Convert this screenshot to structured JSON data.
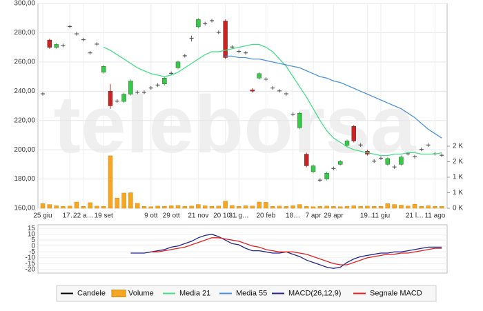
{
  "watermark": "teleborsa",
  "chart_data": [
    {
      "type": "candlestick",
      "categories": [
        "25 giu",
        null,
        null,
        null,
        "17…",
        null,
        "22 a…",
        null,
        null,
        "19 set",
        null,
        null,
        null,
        null,
        null,
        null,
        "9 ott",
        null,
        null,
        "29 ott",
        null,
        null,
        null,
        "21 nov",
        null,
        null,
        null,
        "20 10…",
        null,
        "31 g…",
        null,
        null,
        null,
        "20 feb",
        null,
        null,
        null,
        "18…",
        null,
        null,
        "7 apr",
        null,
        null,
        "29 apr",
        null,
        null,
        null,
        null,
        "19…",
        null,
        "11 giu",
        null,
        null,
        null,
        null,
        "21 l…",
        null,
        null,
        "11 ago",
        null
      ],
      "ylim": [
        160,
        300
      ],
      "yticks": [
        {
          "value": 160,
          "label": "160,00"
        },
        {
          "value": 180,
          "label": "180,00"
        },
        {
          "value": 200,
          "label": "200,00"
        },
        {
          "value": 220,
          "label": "220,00"
        },
        {
          "value": 240,
          "label": "240,00"
        },
        {
          "value": 260,
          "label": "260,00"
        },
        {
          "value": 280,
          "label": "280,00"
        },
        {
          "value": 300,
          "label": "300,00"
        }
      ],
      "y2lim": [
        0,
        6600
      ],
      "y2ticks": [
        {
          "value": 0,
          "label": "0 K"
        },
        {
          "value": 500,
          "label": "1 K"
        },
        {
          "value": 1000,
          "label": "1 K"
        },
        {
          "value": 1500,
          "label": "2 K"
        },
        {
          "value": 2000,
          "label": "2 K"
        }
      ],
      "grid": true,
      "candles": {
        "name": "Candele",
        "color": "#000000",
        "up_color": "#33cc44",
        "down_color": "#cc2222",
        "flat_color": "#555555",
        "open": [
          238.5,
          275,
          270,
          271.5,
          284.5,
          279.5,
          275.5,
          266.5,
          272.5,
          253,
          240,
          233.5,
          233,
          238,
          239.5,
          239.5,
          242.5,
          244.5,
          245,
          252.5,
          256,
          264.5,
          276.5,
          284,
          286.5,
          288.5,
          280.5,
          288,
          270.5,
          267.5,
          266.5,
          241,
          249,
          248.5,
          242.5,
          240.5,
          238.5,
          224.5,
          215,
          197,
          185,
          179.5,
          180,
          187.5,
          190,
          203,
          216,
          203.5,
          199,
          192.5,
          194.5,
          190,
          188.5,
          190,
          197.5,
          195.5,
          200.5,
          203.5,
          197.5,
          196.5
        ],
        "high": [
          239.5,
          276,
          273,
          272.5,
          285.5,
          280.5,
          276.5,
          267.5,
          273.5,
          258,
          245,
          234.5,
          239,
          248,
          240.5,
          240.5,
          243.5,
          245.5,
          250,
          253.5,
          261,
          265.5,
          278,
          290,
          287.5,
          289.5,
          281.5,
          289,
          271.5,
          268.5,
          267.5,
          242,
          253,
          249.5,
          243.5,
          241.5,
          239.5,
          225.5,
          226,
          198,
          190,
          180.5,
          185,
          188.5,
          193,
          207,
          217,
          204.5,
          200,
          193.5,
          195.5,
          195,
          189.5,
          196,
          198.5,
          196.5,
          201.5,
          204.5,
          198.5,
          197.5
        ],
        "low": [
          237,
          269,
          269,
          270,
          283,
          278,
          274,
          265,
          271,
          252,
          228,
          232,
          232,
          237,
          238,
          238,
          241,
          243,
          244,
          251,
          255,
          263,
          274,
          283,
          285,
          287,
          279,
          262,
          269,
          266,
          265,
          239,
          248,
          247,
          241,
          239,
          237,
          223,
          214,
          188,
          184,
          178,
          179,
          186,
          189,
          202,
          205,
          202,
          196,
          191,
          193,
          189,
          187,
          189,
          196,
          194,
          199,
          202,
          196,
          195
        ],
        "close": [
          238,
          270,
          272,
          271,
          284,
          279,
          275,
          266,
          272,
          257,
          230,
          233,
          238,
          247,
          239,
          239,
          242,
          244,
          249,
          252,
          260,
          264,
          276,
          289,
          286,
          288,
          280,
          263,
          270,
          267,
          266,
          240,
          252,
          248,
          242,
          240,
          238,
          224,
          225,
          189,
          189,
          179,
          184,
          187,
          192,
          206,
          206,
          203,
          197,
          192,
          194,
          194,
          188,
          195,
          197,
          195,
          200,
          203,
          197,
          196
        ]
      },
      "series": [
        {
          "name": "Volume",
          "type": "bar",
          "axis": "y2",
          "color": "#f5a623",
          "values": [
            150,
            120,
            80,
            60,
            70,
            200,
            60,
            180,
            70,
            60,
            1690,
            330,
            490,
            500,
            160,
            60,
            50,
            70,
            60,
            80,
            90,
            60,
            70,
            120,
            80,
            60,
            70,
            230,
            90,
            60,
            80,
            70,
            200,
            190,
            60,
            70,
            60,
            80,
            120,
            60,
            50,
            60,
            70,
            60,
            50,
            60,
            80,
            60,
            70,
            60,
            60,
            150,
            120,
            100,
            70,
            130,
            60,
            80,
            60,
            60
          ]
        },
        {
          "name": "Media 21",
          "type": "line",
          "color": "#44dd88",
          "values": [
            null,
            null,
            null,
            null,
            null,
            null,
            null,
            null,
            null,
            270,
            268,
            265,
            262,
            259,
            256,
            254,
            252,
            251,
            250,
            251,
            253,
            256,
            259,
            262,
            265,
            267,
            267,
            268,
            269,
            270,
            271,
            272,
            272,
            270,
            267,
            262,
            257,
            250,
            243,
            236,
            228,
            220,
            213,
            208,
            205,
            202,
            200,
            199,
            198,
            197,
            196,
            196,
            197,
            197,
            198,
            198,
            197,
            197,
            197,
            198
          ]
        },
        {
          "name": "Media 55",
          "type": "line",
          "color": "#4a90d9",
          "values": [
            null,
            null,
            null,
            null,
            null,
            null,
            null,
            null,
            null,
            null,
            null,
            null,
            null,
            null,
            null,
            null,
            null,
            null,
            null,
            null,
            null,
            null,
            null,
            null,
            null,
            null,
            null,
            264,
            264,
            263,
            263,
            262,
            262,
            261,
            260,
            259,
            258,
            257,
            256,
            254,
            252,
            250,
            249,
            247,
            246,
            244,
            242,
            240,
            238,
            236,
            234,
            232,
            230,
            228,
            225,
            222,
            218,
            214,
            211,
            208
          ]
        }
      ]
    },
    {
      "type": "line",
      "ylim": [
        -23,
        18
      ],
      "yticks": [
        -20,
        -15,
        -10,
        -5,
        0,
        5,
        10,
        15
      ],
      "series": [
        {
          "name": "MACD(26,12,9)",
          "color": "#22228a",
          "values": [
            null,
            null,
            null,
            null,
            null,
            null,
            null,
            null,
            null,
            null,
            null,
            null,
            null,
            -6,
            -6,
            -6,
            -5,
            -4,
            -3,
            -1,
            0,
            2,
            4,
            7,
            9,
            10,
            8,
            5,
            2,
            1,
            -2,
            -4,
            -4,
            -5,
            -6,
            -6,
            -5,
            -7,
            -9,
            -12,
            -14,
            -16,
            -18,
            -19,
            -18,
            -14,
            -11,
            -9,
            -8,
            -7,
            -6,
            -6,
            -5,
            -5,
            -4,
            -3,
            -2,
            -1,
            -1,
            -1
          ]
        },
        {
          "name": "Segnale MACD",
          "color": "#dd2222",
          "values": [
            null,
            null,
            null,
            null,
            null,
            null,
            null,
            null,
            null,
            null,
            null,
            null,
            null,
            null,
            null,
            null,
            -5,
            -5,
            -4,
            -3,
            -2,
            -1,
            1,
            3,
            5,
            7,
            7,
            6,
            5,
            4,
            2,
            0,
            -1,
            -3,
            -4,
            -5,
            -5,
            -5,
            -6,
            -7,
            -9,
            -11,
            -13,
            -15,
            -16,
            -16,
            -14,
            -12,
            -10,
            -9,
            -8,
            -7,
            -7,
            -6,
            -6,
            -5,
            -4,
            -3,
            -2,
            -2
          ]
        }
      ]
    }
  ]
}
